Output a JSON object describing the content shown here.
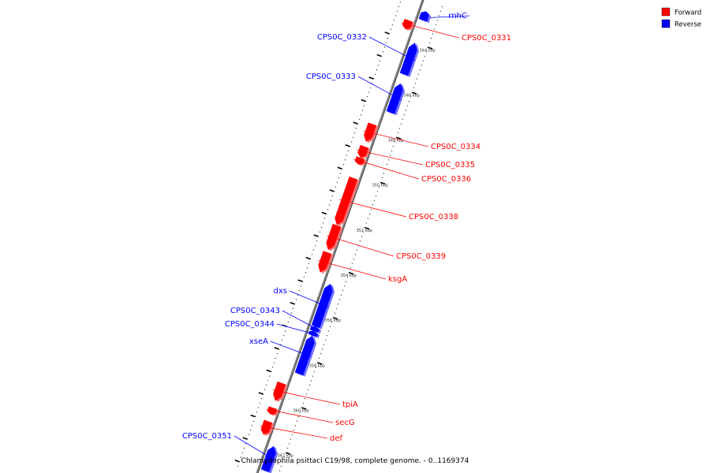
{
  "caption": "Chlamydophila psittaci C19/98, complete genome. - 0..1169374",
  "colors": {
    "forward": "#ff0000",
    "reverse": "#0000ff",
    "backbone": "#808080"
  },
  "legend": [
    {
      "label": "Forward",
      "strand": "forward"
    },
    {
      "label": "Reverse",
      "strand": "reverse"
    }
  ],
  "ticks": [
    {
      "kbp": 344,
      "label": "344 kbp"
    },
    {
      "kbp": 346,
      "label": "346 kbp"
    },
    {
      "kbp": 348,
      "label": "348 kbp"
    },
    {
      "kbp": 350,
      "label": "350 kbp"
    },
    {
      "kbp": 352,
      "label": "352 kbp"
    },
    {
      "kbp": 354,
      "label": "354 kbp"
    },
    {
      "kbp": 356,
      "label": "356 kbp"
    },
    {
      "kbp": 358,
      "label": "358 kbp"
    },
    {
      "kbp": 360,
      "label": "360 kbp"
    },
    {
      "kbp": 362,
      "label": "362 kbp"
    }
  ],
  "genes": [
    {
      "name": "rnhC",
      "strand": "reverse",
      "start": 342.6,
      "end": 343.0
    },
    {
      "name": "CPS0C_0331",
      "strand": "forward",
      "start": 343.2,
      "end": 343.6
    },
    {
      "name": "CPS0C_0332",
      "strand": "reverse",
      "start": 344.0,
      "end": 345.4
    },
    {
      "name": "CPS0C_0333",
      "strand": "reverse",
      "start": 345.8,
      "end": 347.1
    },
    {
      "name": "CPS0C_0334",
      "strand": "forward",
      "start": 347.8,
      "end": 348.6
    },
    {
      "name": "CPS0C_0335",
      "strand": "forward",
      "start": 348.8,
      "end": 349.3
    },
    {
      "name": "CPS0C_0336",
      "strand": "forward",
      "start": 349.3,
      "end": 349.6
    },
    {
      "name": "CPS0C_0338",
      "strand": "forward",
      "start": 350.2,
      "end": 352.3
    },
    {
      "name": "CPS0C_0339",
      "strand": "forward",
      "start": 352.3,
      "end": 353.4
    },
    {
      "name": "ksgA",
      "strand": "forward",
      "start": 353.5,
      "end": 354.4
    },
    {
      "name": "dxs",
      "strand": "reverse",
      "start": 354.7,
      "end": 356.6
    },
    {
      "name": "CPS0C_0343",
      "strand": "reverse",
      "start": 356.6,
      "end": 356.8
    },
    {
      "name": "CPS0C_0344",
      "strand": "reverse",
      "start": 356.8,
      "end": 357.0
    },
    {
      "name": "xseA",
      "strand": "reverse",
      "start": 357.0,
      "end": 358.7
    },
    {
      "name": "tpiA",
      "strand": "forward",
      "start": 359.3,
      "end": 360.1
    },
    {
      "name": "secG",
      "strand": "forward",
      "start": 360.4,
      "end": 360.7
    },
    {
      "name": "def",
      "strand": "forward",
      "start": 361.0,
      "end": 361.6
    },
    {
      "name": "CPS0C_0351",
      "strand": "reverse",
      "start": 361.9,
      "end": 363.0
    }
  ]
}
